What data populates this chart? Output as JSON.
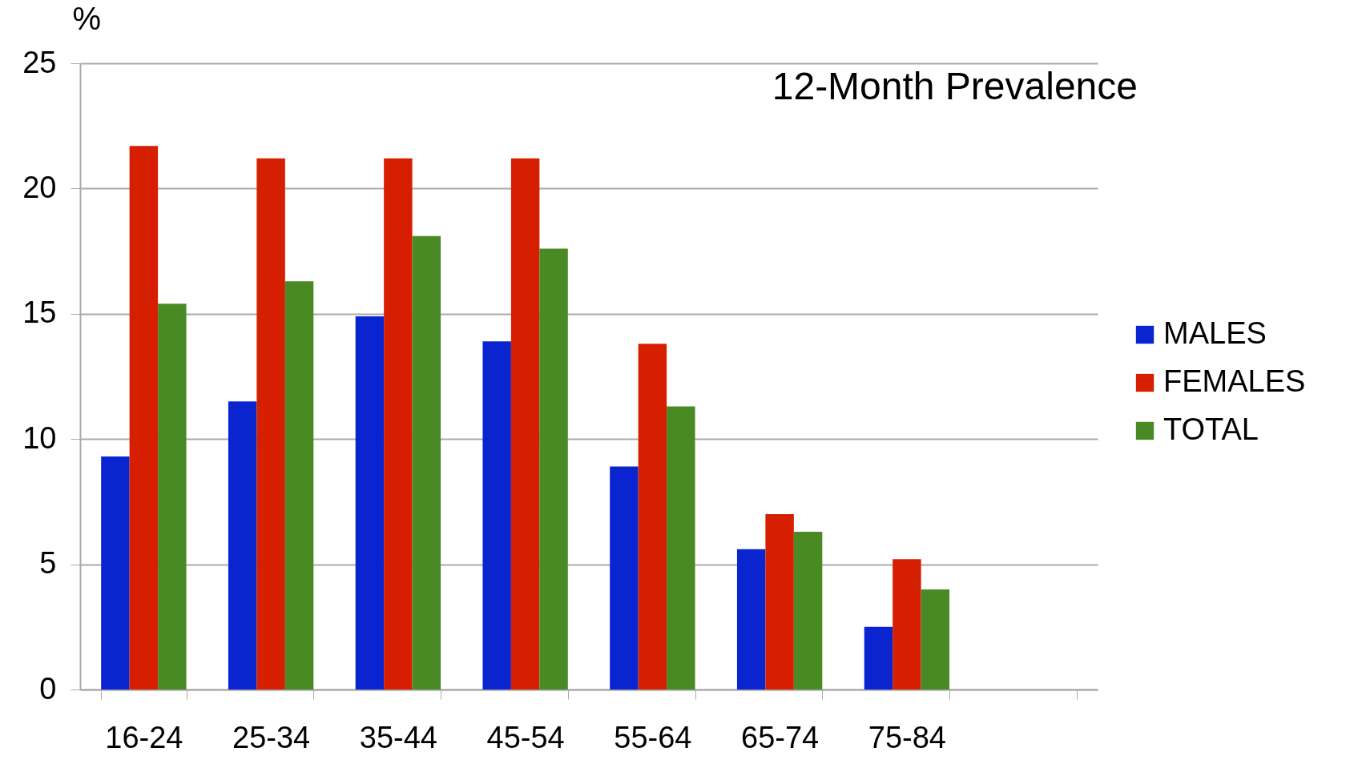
{
  "chart_data": {
    "type": "bar",
    "title": "12-Month Prevalence",
    "ylabel": "%",
    "categories": [
      "16-24",
      "25-34",
      "35-44",
      "45-54",
      "55-64",
      "65-74",
      "75-84",
      null
    ],
    "series": [
      {
        "name": "MALES",
        "color": "#0a24d0",
        "values": [
          9.3,
          11.5,
          14.9,
          13.9,
          8.9,
          5.6,
          2.5,
          null
        ]
      },
      {
        "name": "FEMALES",
        "color": "#d51f00",
        "values": [
          21.7,
          21.2,
          21.2,
          21.2,
          13.8,
          7.0,
          5.2,
          null
        ]
      },
      {
        "name": "TOTAL",
        "color": "#4a8a24",
        "values": [
          15.4,
          16.3,
          18.1,
          17.6,
          11.3,
          6.3,
          4.0,
          null
        ]
      }
    ],
    "ylim": [
      0,
      25
    ],
    "yticks": [
      0,
      5,
      10,
      15,
      20,
      25
    ],
    "grid": "y",
    "legend": "right"
  }
}
